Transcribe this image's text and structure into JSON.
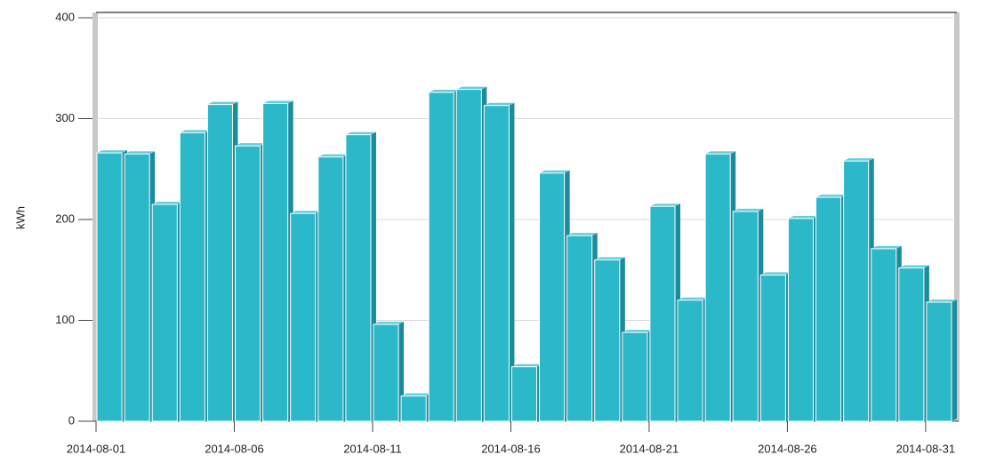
{
  "chart_data": {
    "type": "bar",
    "y_label": "kWh",
    "categories": [
      "2014-08-01",
      null,
      null,
      null,
      null,
      "2014-08-06",
      null,
      null,
      null,
      null,
      "2014-08-11",
      null,
      null,
      null,
      null,
      "2014-08-16",
      null,
      null,
      null,
      null,
      "2014-08-21",
      null,
      null,
      null,
      null,
      "2014-08-26",
      null,
      null,
      null,
      null,
      "2014-08-31"
    ],
    "values": [
      266,
      265,
      215,
      286,
      314,
      273,
      315,
      206,
      262,
      284,
      96,
      25,
      326,
      329,
      313,
      54,
      246,
      184,
      160,
      88,
      213,
      120,
      265,
      208,
      145,
      201,
      222,
      258,
      171,
      152,
      118
    ],
    "color": "#2bb8c9",
    "ylim": [
      0,
      400
    ],
    "yticks": [
      0,
      100,
      200,
      300,
      400
    ],
    "grid": true
  }
}
